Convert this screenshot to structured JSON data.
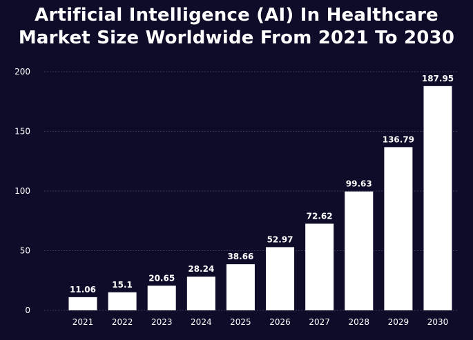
{
  "chart_data": {
    "type": "bar",
    "title_line1": "Artificial Intelligence (AI) In Healthcare",
    "title_line2": "Market Size Worldwide From 2021 To 2030",
    "categories": [
      "2021",
      "2022",
      "2023",
      "2024",
      "2025",
      "2026",
      "2027",
      "2028",
      "2029",
      "2030"
    ],
    "values": [
      11.06,
      15.1,
      20.65,
      28.24,
      38.66,
      52.97,
      72.62,
      99.63,
      136.79,
      187.95
    ],
    "value_labels": [
      "11.06",
      "15.1",
      "20.65",
      "28.24",
      "38.66",
      "52.97",
      "72.62",
      "99.63",
      "136.79",
      "187.95"
    ],
    "yticks": [
      0,
      50,
      100,
      150,
      200
    ],
    "ylim": [
      0,
      200
    ],
    "xlabel": "",
    "ylabel": "",
    "grid": true,
    "colors": {
      "background": "#0f0c2a",
      "bar": "#ffffff",
      "text": "#ffffff",
      "grid": "#3a3658"
    }
  }
}
